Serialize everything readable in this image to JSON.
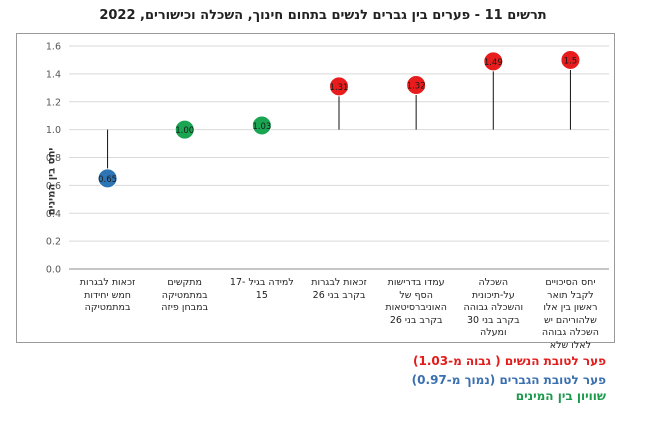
{
  "title": "תרשים 11 - פערים בין גברים לנשים בתחום חינוך, השכלה וכישורים, 2022",
  "chart_data": {
    "type": "scatter",
    "ylabel": "יחס בין המינים",
    "ylim": [
      0,
      1.6
    ],
    "yticks": [
      "0.0",
      "0.2",
      "0.4",
      "0.6",
      "0.8",
      "1.0",
      "1.2",
      "1.4",
      "1.6"
    ],
    "baseline": 1.0,
    "grid": true,
    "categories": [
      "זכאות לבגרות חמש יחידות במתמטיקה",
      "מתקשים במתמטיקה במבחן פיזה",
      "למידה בגיל 17-15",
      "זכאות לבגרות בקרב בני 26",
      "עמדו בדרישות הסף של האוניברסיטאות בקרב בני 26",
      "השכלה על-תיכונית והשכלה גבוהה בקרב בני 30 ומעלה",
      "יחס הסיכויים לקבל תואר ראשון בין אלו שלהוריהם יש השכלה גבוהה לאלו שלא"
    ],
    "values": [
      0.65,
      1.0,
      1.03,
      1.31,
      1.32,
      1.49,
      1.5
    ],
    "labels": [
      "0.65",
      "1.00",
      "1.03",
      "1.31",
      "1.32",
      "1.49",
      "1.5"
    ],
    "point_colors": [
      "#2e75b6",
      "#1aa553",
      "#1aa553",
      "#e81c1c",
      "#e81c1c",
      "#e81c1c",
      "#e81c1c"
    ]
  },
  "legend": [
    {
      "text": "פער לטובת הנשים ( גבוה מ-1.03)",
      "color": "#e31b1b"
    },
    {
      "text": "פער לטובת הגברים (נמוך מ-0.97)",
      "color": "#3a6fb0"
    },
    {
      "text": "שוויון בין המינים",
      "color": "#1a9a4a"
    }
  ]
}
